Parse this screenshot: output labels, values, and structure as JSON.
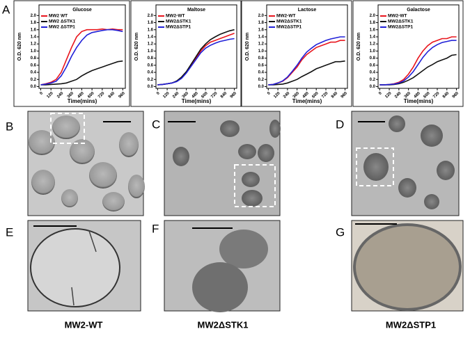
{
  "chart_data": [
    {
      "type": "line",
      "title": "Glucose",
      "xlabel": "Time(mins)",
      "ylabel": "O.D. 620 nm",
      "x": [
        0,
        60,
        120,
        180,
        240,
        300,
        360,
        420,
        480,
        540,
        600,
        660,
        720,
        780,
        840,
        900,
        960
      ],
      "xlim": [
        -20,
        990
      ],
      "xticks": [
        0,
        120,
        240,
        360,
        480,
        600,
        720,
        840,
        960
      ],
      "ylim": [
        -0.05,
        2.3
      ],
      "yticks": [
        {
          "value": 0,
          "label": "0.0"
        },
        0.2,
        0.4,
        0.6,
        0.8,
        {
          "value": 1,
          "label": "1.0"
        },
        1.2,
        1.4,
        1.6,
        1.8,
        {
          "value": 2,
          "label": "2.0"
        }
      ],
      "series": [
        {
          "name": "MW2 WT",
          "color": "#e8141c",
          "values": [
            0.05,
            0.08,
            0.12,
            0.2,
            0.4,
            0.75,
            1.1,
            1.4,
            1.55,
            1.6,
            1.6,
            1.6,
            1.62,
            1.6,
            1.62,
            1.6,
            1.6
          ]
        },
        {
          "name": "MW2 ΔSTK1",
          "color": "#111111",
          "values": [
            0.05,
            0.05,
            0.06,
            0.07,
            0.08,
            0.1,
            0.15,
            0.2,
            0.3,
            0.38,
            0.45,
            0.5,
            0.55,
            0.6,
            0.65,
            0.7,
            0.72
          ]
        },
        {
          "name": "MW2 ΔSTP1",
          "color": "#2020d8",
          "values": [
            0.05,
            0.07,
            0.1,
            0.15,
            0.3,
            0.55,
            0.85,
            1.1,
            1.3,
            1.45,
            1.52,
            1.55,
            1.58,
            1.6,
            1.6,
            1.58,
            1.55
          ]
        }
      ]
    },
    {
      "type": "line",
      "title": "Maltose",
      "xlabel": "Time(mins)",
      "ylabel": "O.D. 620 nm",
      "x": [
        0,
        60,
        120,
        180,
        240,
        300,
        360,
        420,
        480,
        540,
        600,
        660,
        720,
        780,
        840,
        900,
        960
      ],
      "xlim": [
        -20,
        990
      ],
      "xticks": [
        0,
        120,
        240,
        360,
        480,
        600,
        720,
        840,
        960
      ],
      "ylim": [
        -0.05,
        2.3
      ],
      "yticks": [
        {
          "value": 0,
          "label": "0.0"
        },
        0.2,
        0.4,
        0.6,
        0.8,
        {
          "value": 1,
          "label": "1.0"
        },
        1.2,
        1.4,
        1.6,
        1.8,
        {
          "value": 2,
          "label": "2.0"
        }
      ],
      "series": [
        {
          "name": "MW2-WT",
          "color": "#e8141c",
          "values": [
            0.05,
            0.06,
            0.08,
            0.1,
            0.15,
            0.25,
            0.4,
            0.6,
            0.8,
            1.0,
            1.15,
            1.25,
            1.3,
            1.35,
            1.4,
            1.45,
            1.5
          ]
        },
        {
          "name": "MW2ΔSTK1",
          "color": "#111111",
          "values": [
            0.05,
            0.06,
            0.08,
            0.1,
            0.16,
            0.27,
            0.42,
            0.63,
            0.84,
            1.05,
            1.2,
            1.32,
            1.4,
            1.47,
            1.52,
            1.57,
            1.6
          ]
        },
        {
          "name": "MW2ΔSTP1",
          "color": "#2020d8",
          "values": [
            0.05,
            0.06,
            0.08,
            0.1,
            0.14,
            0.23,
            0.38,
            0.57,
            0.76,
            0.95,
            1.08,
            1.16,
            1.22,
            1.27,
            1.3,
            1.33,
            1.35
          ]
        }
      ]
    },
    {
      "type": "line",
      "title": "Lactose",
      "xlabel": "Time(mins)",
      "ylabel": "O.D. 620 nm",
      "x": [
        0,
        60,
        120,
        180,
        240,
        300,
        360,
        420,
        480,
        540,
        600,
        660,
        720,
        780,
        840,
        900,
        960
      ],
      "xlim": [
        -20,
        990
      ],
      "xticks": [
        0,
        120,
        240,
        360,
        480,
        600,
        720,
        840,
        960
      ],
      "ylim": [
        -0.05,
        2.3
      ],
      "yticks": [
        {
          "value": 0,
          "label": "0.0"
        },
        0.2,
        0.4,
        0.6,
        0.8,
        {
          "value": 1,
          "label": "1.0"
        },
        1.2,
        1.4,
        1.6,
        1.8,
        {
          "value": 2,
          "label": "2.0"
        }
      ],
      "series": [
        {
          "name": "MW2-WT",
          "color": "#e8141c",
          "values": [
            0.05,
            0.06,
            0.1,
            0.15,
            0.25,
            0.4,
            0.55,
            0.75,
            0.9,
            1.0,
            1.1,
            1.15,
            1.2,
            1.25,
            1.25,
            1.3,
            1.3
          ]
        },
        {
          "name": "MW2ΔSTK1",
          "color": "#111111",
          "values": [
            0.05,
            0.05,
            0.06,
            0.07,
            0.1,
            0.15,
            0.2,
            0.28,
            0.35,
            0.42,
            0.5,
            0.55,
            0.6,
            0.65,
            0.7,
            0.7,
            0.72
          ]
        },
        {
          "name": "MW2ΔSTP1",
          "color": "#2020d8",
          "values": [
            0.05,
            0.06,
            0.1,
            0.16,
            0.27,
            0.43,
            0.6,
            0.8,
            0.97,
            1.08,
            1.18,
            1.24,
            1.3,
            1.34,
            1.37,
            1.4,
            1.4
          ]
        }
      ]
    },
    {
      "type": "line",
      "title": "Galactose",
      "xlabel": "Time(mins)",
      "ylabel": "O.D. 620 nm",
      "x": [
        0,
        60,
        120,
        180,
        240,
        300,
        360,
        420,
        480,
        540,
        600,
        660,
        720,
        780,
        840,
        900,
        960
      ],
      "xlim": [
        -20,
        990
      ],
      "xticks": [
        0,
        120,
        240,
        360,
        480,
        600,
        720,
        840,
        960
      ],
      "ylim": [
        -0.05,
        2.3
      ],
      "yticks": [
        {
          "value": 0,
          "label": "0.0"
        },
        0.2,
        0.4,
        0.6,
        0.8,
        {
          "value": 1,
          "label": "1.0"
        },
        1.2,
        1.4,
        1.6,
        1.8,
        {
          "value": 2,
          "label": "2.0"
        }
      ],
      "series": [
        {
          "name": "MW2-WT",
          "color": "#e8141c",
          "values": [
            0.05,
            0.05,
            0.06,
            0.08,
            0.12,
            0.2,
            0.35,
            0.55,
            0.8,
            1.0,
            1.15,
            1.25,
            1.3,
            1.35,
            1.35,
            1.4,
            1.4
          ]
        },
        {
          "name": "MW2ΔSTK1",
          "color": "#111111",
          "values": [
            0.05,
            0.05,
            0.05,
            0.06,
            0.08,
            0.12,
            0.18,
            0.25,
            0.35,
            0.45,
            0.55,
            0.62,
            0.7,
            0.75,
            0.8,
            0.88,
            0.9
          ]
        },
        {
          "name": "MW2ΔSTP1",
          "color": "#2020d8",
          "values": [
            0.05,
            0.05,
            0.06,
            0.07,
            0.1,
            0.16,
            0.27,
            0.42,
            0.62,
            0.82,
            0.98,
            1.1,
            1.18,
            1.24,
            1.27,
            1.3,
            1.3
          ]
        }
      ]
    }
  ],
  "figure": {
    "panel_labels": [
      "A",
      "B",
      "C",
      "D",
      "E",
      "F",
      "G"
    ],
    "captions": [
      "MW2-WT",
      "MW2ΔSTK1",
      "MW2ΔSTP1"
    ]
  }
}
